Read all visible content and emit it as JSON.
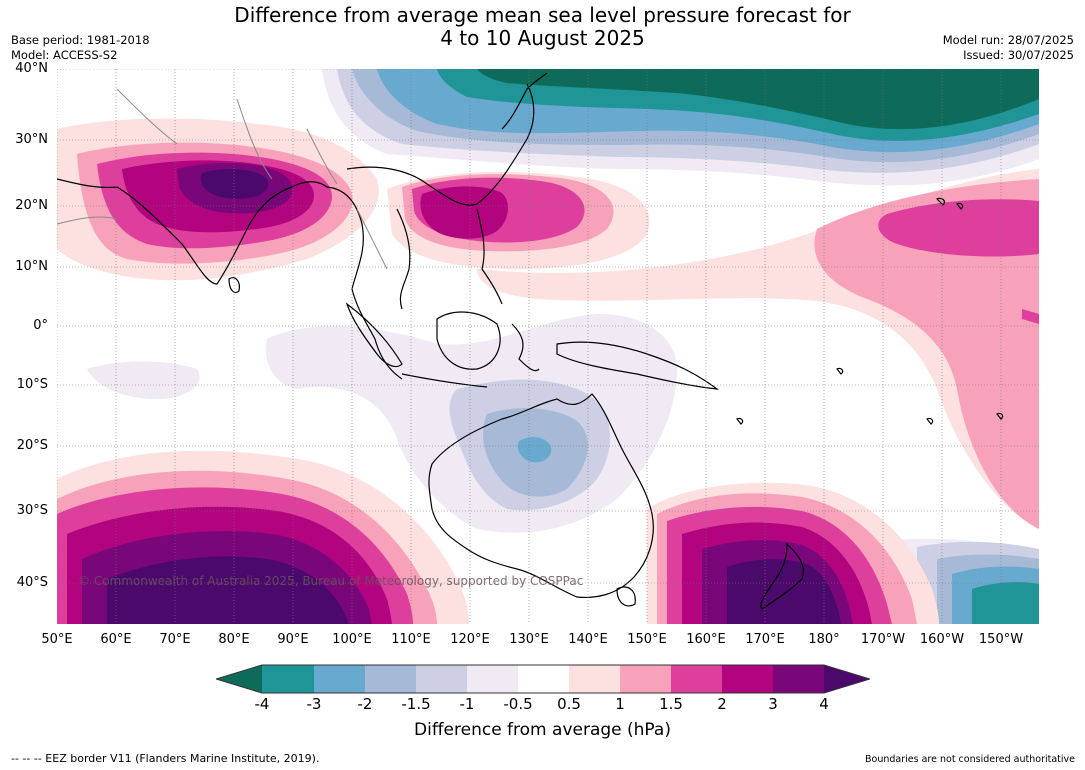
{
  "title_line1": "Difference from average mean sea level pressure forecast for",
  "title_line2": "4 to 10 August 2025",
  "base_period": "Base period: 1981-2018",
  "model": "Model: ACCESS-S2",
  "model_run": "Model run: 28/07/2025",
  "issued": "Issued: 30/07/2025",
  "copyright": "© Commonwealth of Australia 2025, Bureau of Meteorology, supported by COSPPac",
  "lat_labels": [
    "40°N",
    "30°N",
    "20°N",
    "10°N",
    "0°",
    "10°S",
    "20°S",
    "30°S",
    "40°S"
  ],
  "lon_labels": [
    "50°E",
    "60°E",
    "70°E",
    "80°E",
    "90°E",
    "100°E",
    "110°E",
    "120°E",
    "130°E",
    "140°E",
    "150°E",
    "160°E",
    "170°E",
    "180°",
    "170°W",
    "160°W",
    "150°W"
  ],
  "colorbar": {
    "ticks": [
      "-4",
      "-3",
      "-2",
      "-1.5",
      "-1",
      "-0.5",
      "0.5",
      "1",
      "1.5",
      "2",
      "3",
      "4"
    ],
    "colors": [
      "#0e6b5a",
      "#1f9598",
      "#68aacf",
      "#a6b9d7",
      "#cdd0e4",
      "#efeaf3",
      "#ffffff",
      "#fde0e0",
      "#f7a2ba",
      "#de3f9c",
      "#b1047e",
      "#7a0779",
      "#4b0a6b"
    ],
    "label": "Difference from average (hPa)"
  },
  "footer_left": "--  --  -- EEZ border V11 (Flanders Marine Institute, 2019).",
  "footer_right": "Boundaries are not considered authoritative"
}
